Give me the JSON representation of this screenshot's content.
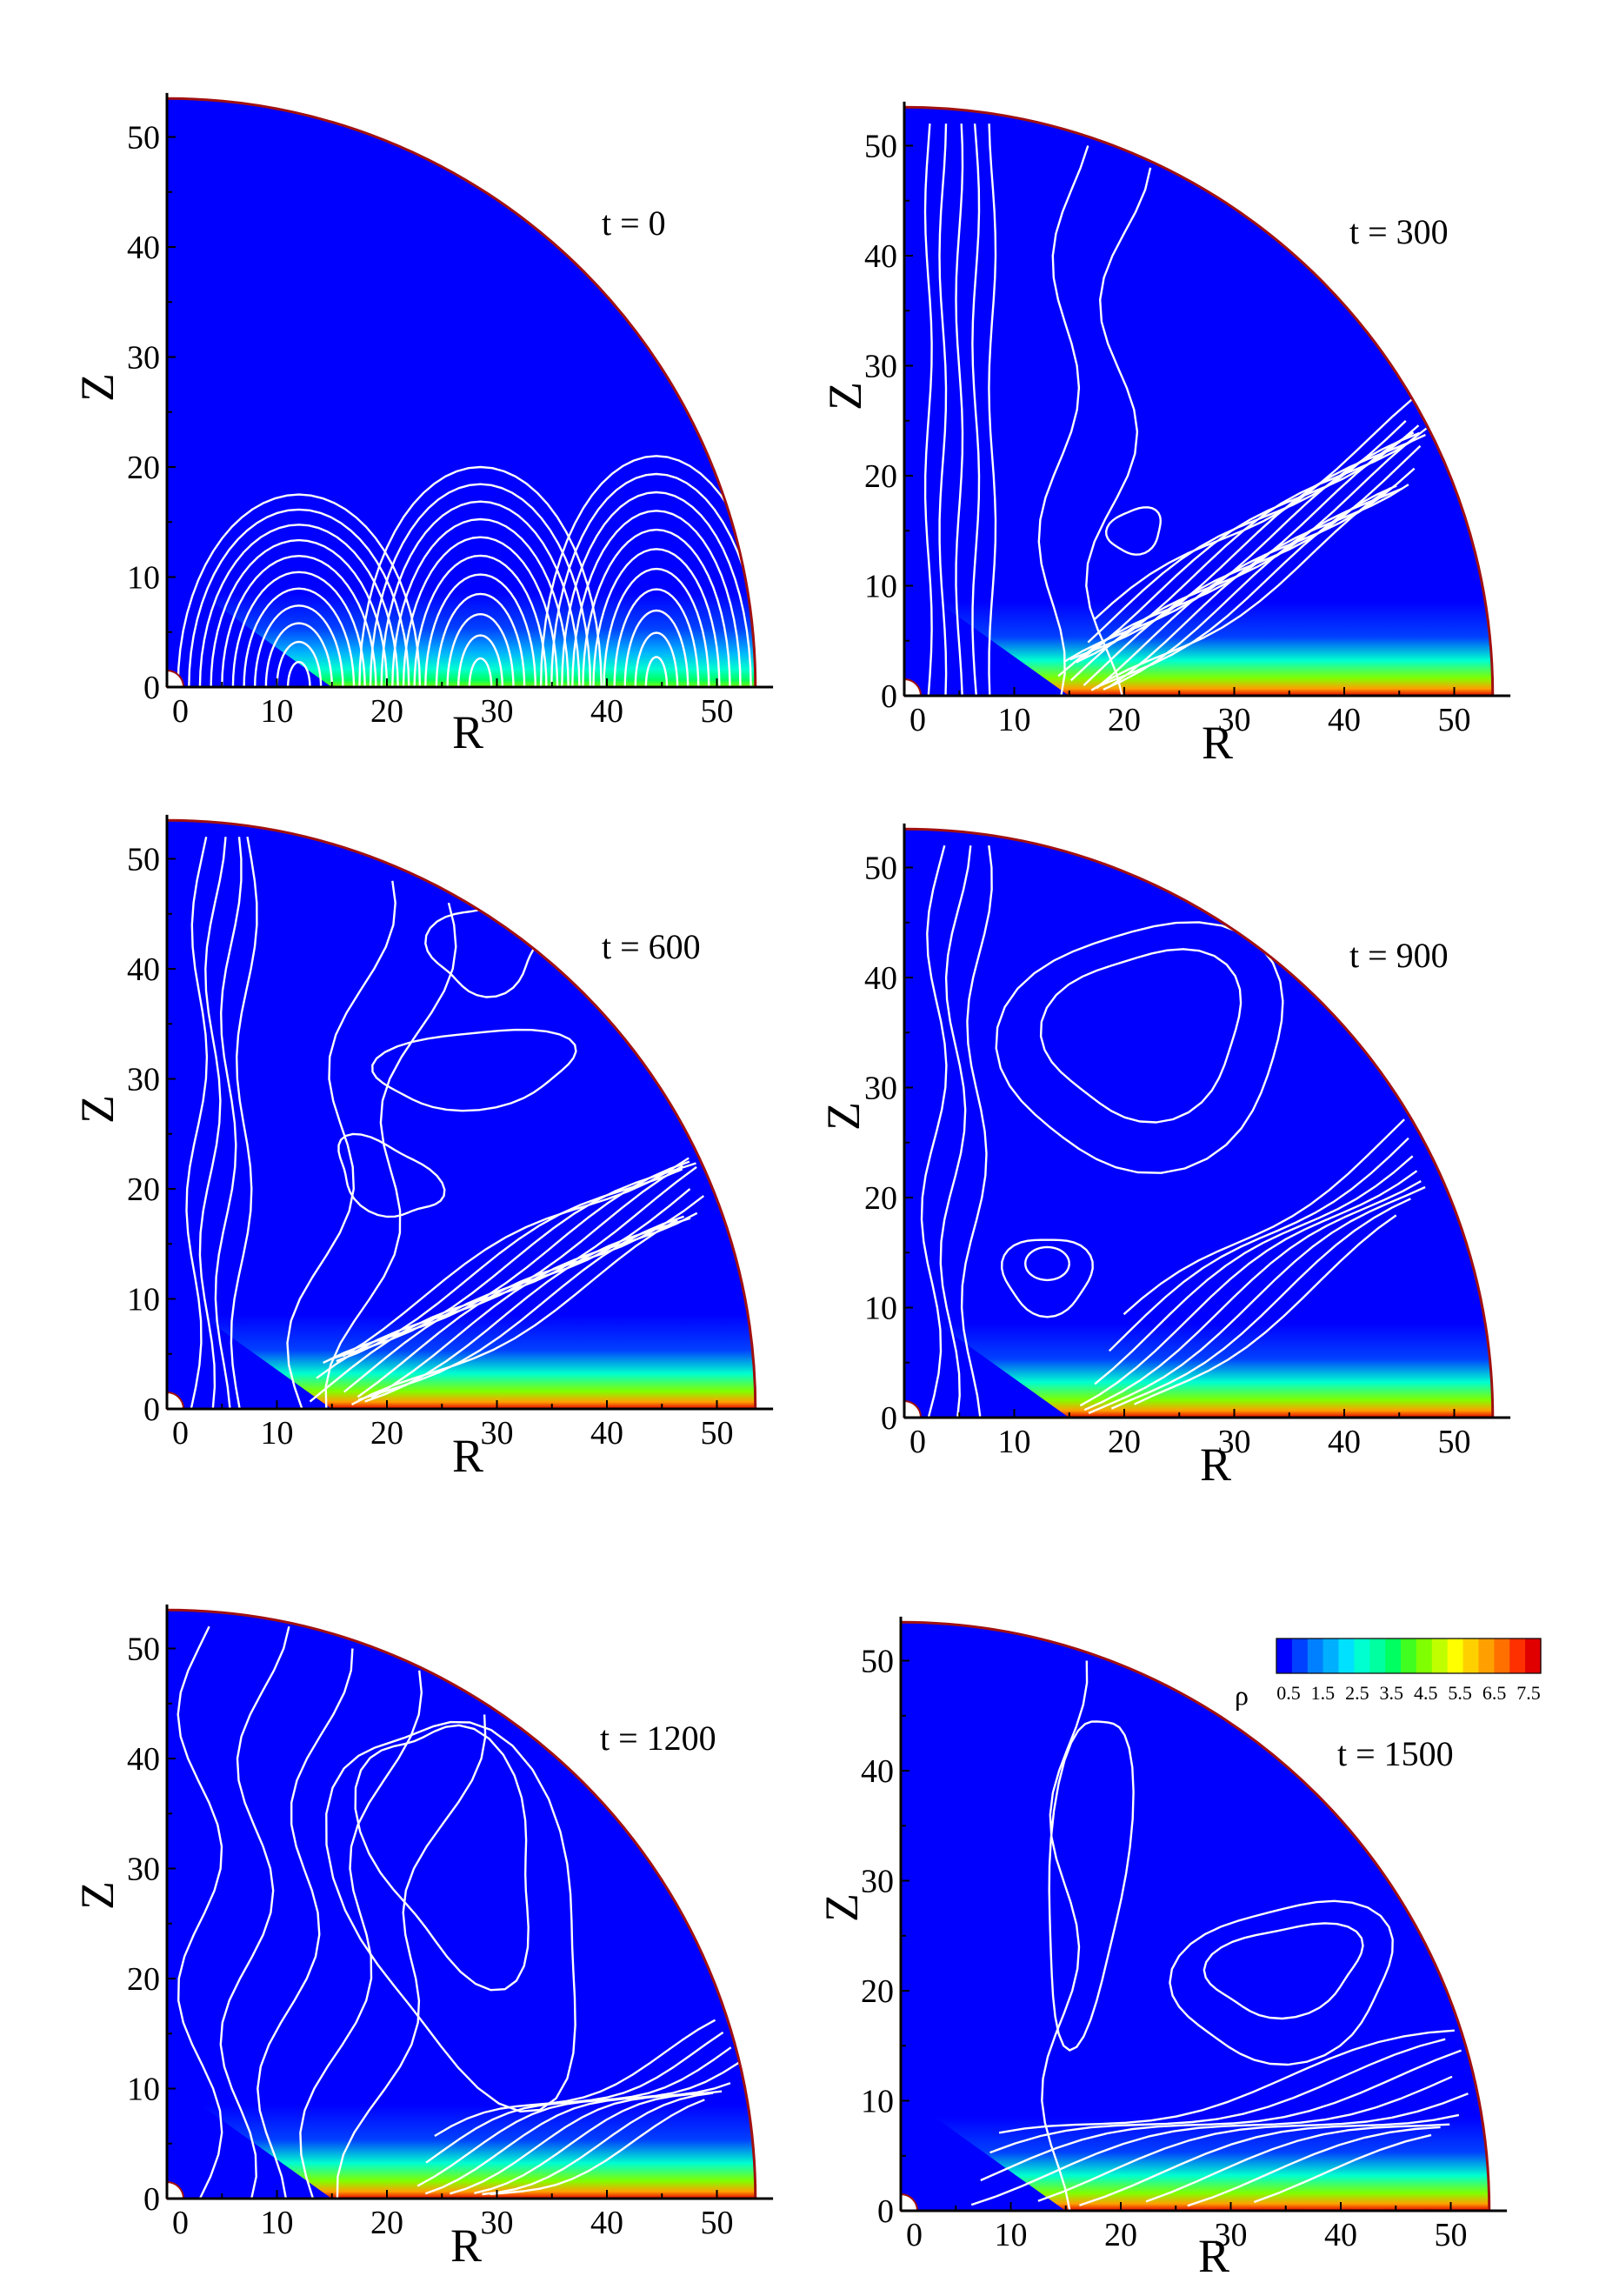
{
  "chart_data": [
    {
      "type": "contour",
      "time_label": "t = 0",
      "xlabel": "R",
      "ylabel": "Z",
      "xlim": [
        0,
        54
      ],
      "ylim": [
        0,
        54
      ],
      "x_ticks": [
        0,
        10,
        20,
        30,
        40,
        50
      ],
      "y_ticks": [
        0,
        10,
        20,
        30,
        40,
        50
      ],
      "domain": "quarter disk, outer radius ~53.5, inner radius ~1.5",
      "field": "rho",
      "max_density_near_midplane": 4.5,
      "field_lines": "three families of closed dipole-like arches with footpoints on the midplane, peaks near Z=17, 20 and 21"
    },
    {
      "type": "contour",
      "time_label": "t = 300",
      "xlabel": "R",
      "ylabel": "Z",
      "xlim": [
        0,
        54
      ],
      "ylim": [
        0,
        54
      ],
      "x_ticks": [
        0,
        10,
        20,
        30,
        40,
        50
      ],
      "y_ticks": [
        0,
        10,
        20,
        30,
        40,
        50
      ],
      "field": "rho",
      "max_density_near_midplane": 7.5,
      "field_lines": "open, nearly vertical lines near the axis; dense diagonal bundle from R~15 to R~45"
    },
    {
      "type": "contour",
      "time_label": "t = 600",
      "xlabel": "R",
      "ylabel": "Z",
      "xlim": [
        0,
        54
      ],
      "ylim": [
        0,
        54
      ],
      "x_ticks": [
        0,
        10,
        20,
        30,
        40,
        50
      ],
      "y_ticks": [
        0,
        10,
        20,
        30,
        40,
        50
      ],
      "field": "rho",
      "max_density_near_midplane": 7.5,
      "field_lines": "tangled loops and closed islands, dense diagonal bundle starting near R~15"
    },
    {
      "type": "contour",
      "time_label": "t = 900",
      "xlabel": "R",
      "ylabel": "Z",
      "xlim": [
        0,
        54
      ],
      "ylim": [
        0,
        54
      ],
      "x_ticks": [
        0,
        10,
        20,
        30,
        40,
        50
      ],
      "y_ticks": [
        0,
        10,
        20,
        30,
        40,
        50
      ],
      "field": "rho",
      "max_density_near_midplane": 7.5,
      "field_lines": "large closed island centred near (R=22, Z=35), small loop near (R=13, Z=14)"
    },
    {
      "type": "contour",
      "time_label": "t = 1200",
      "xlabel": "R",
      "ylabel": "Z",
      "xlim": [
        0,
        54
      ],
      "ylim": [
        0,
        54
      ],
      "x_ticks": [
        0,
        10,
        20,
        30,
        40,
        50
      ],
      "y_ticks": [
        0,
        10,
        20,
        30,
        40,
        50
      ],
      "field": "rho",
      "max_density_near_midplane": 7.5,
      "field_lines": "meandering mostly vertical lines, lower lines bending into the disk"
    },
    {
      "type": "contour",
      "time_label": "t = 1500",
      "xlabel": "R",
      "ylabel": "Z",
      "xlim": [
        0,
        54
      ],
      "ylim": [
        0,
        54
      ],
      "x_ticks": [
        0,
        10,
        20,
        30,
        40,
        50
      ],
      "y_ticks": [
        0,
        10,
        20,
        30,
        40,
        50
      ],
      "field": "rho",
      "max_density_near_midplane": 7.5,
      "field_lines": "elongated loop from (R=13, Z=16) up to (R=20, Z=45) and nested loops near (R=35, Z=22)"
    }
  ],
  "colorbar": {
    "label": "ρ",
    "tick_labels": [
      "0.5",
      "1.5",
      "2.5",
      "3.5",
      "4.5",
      "5.5",
      "6.5",
      "7.5"
    ],
    "range": [
      0.5,
      7.5
    ],
    "colors": [
      "#0000ff",
      "#0040ff",
      "#0080ff",
      "#00b0ff",
      "#00e0ff",
      "#00ffd0",
      "#00ffa0",
      "#00ff60",
      "#40ff20",
      "#80ff00",
      "#c0ff00",
      "#ffff00",
      "#ffd000",
      "#ffa000",
      "#ff7000",
      "#ff3000",
      "#e00000"
    ]
  }
}
